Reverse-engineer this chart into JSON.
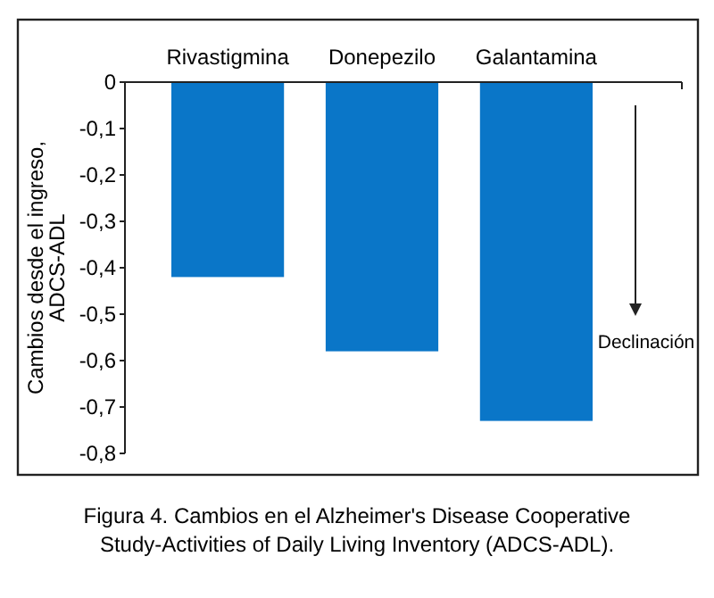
{
  "chart_data": {
    "type": "bar",
    "categories": [
      "Rivastigmina",
      "Donepezilo",
      "Galantamina"
    ],
    "values": [
      -0.42,
      -0.58,
      -0.73
    ],
    "color": "#0a76c8",
    "ylabel": "Cambios desde el ingreso,\nADCS-ADL",
    "ylim": [
      -0.8,
      0
    ],
    "yticks": [
      0,
      {
        "value": -0.1,
        "label": "-0,1"
      },
      {
        "value": -0.2,
        "label": "-0,2"
      },
      {
        "value": -0.3,
        "label": "-0,3"
      },
      {
        "value": -0.4,
        "label": "-0,4"
      },
      {
        "value": -0.5,
        "label": "-0,5"
      },
      {
        "value": -0.6,
        "label": "-0,6"
      },
      {
        "value": -0.7,
        "label": "-0,7"
      },
      {
        "value": -0.8,
        "label": "-0,8"
      }
    ],
    "annotations": [
      "Declinación",
      "Figura 4. Cambios en el Alzheimer's Disease Cooperative\nStudy-Activities of Daily Living Inventory (ADCS-ADL)."
    ],
    "grid": false
  }
}
